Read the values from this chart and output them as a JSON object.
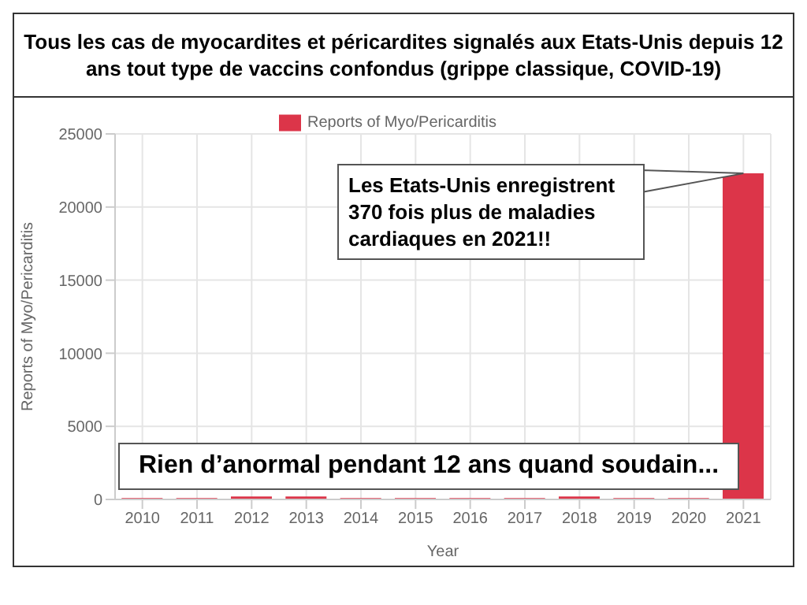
{
  "chart_data": {
    "type": "bar",
    "title": "Tous les cas de myocardites et péricardites signalés aux Etats-Unis depuis 12 ans tout type de vaccins confondus (grippe classique, COVID-19)",
    "categories": [
      "2010",
      "2011",
      "2012",
      "2013",
      "2014",
      "2015",
      "2016",
      "2017",
      "2018",
      "2019",
      "2020",
      "2021"
    ],
    "series": [
      {
        "name": "Reports of Myo/Pericarditis",
        "color": "#dc3549",
        "values": [
          100,
          100,
          200,
          200,
          100,
          100,
          100,
          100,
          200,
          100,
          100,
          22300
        ]
      }
    ],
    "xlabel": "Year",
    "ylabel": "Reports of Myo/Pericarditis",
    "ylim": [
      0,
      25000
    ],
    "yticks": [
      0,
      5000,
      10000,
      15000,
      20000,
      25000
    ],
    "grid": true,
    "legend": "top",
    "annotations": [
      "Les Etats-Unis enregistrent 370 fois plus de maladies cardiaques en 2021!!",
      "Rien d’anormal pendant 12 ans quand soudain..."
    ]
  }
}
